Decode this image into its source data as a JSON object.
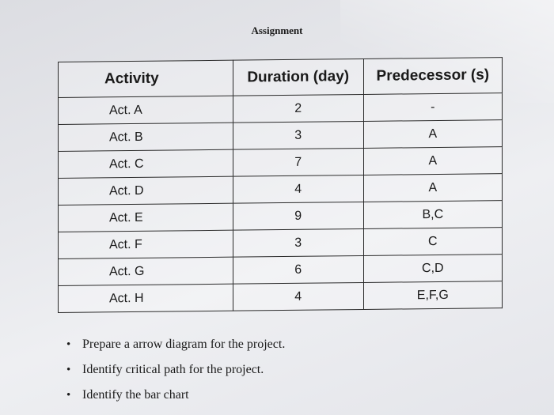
{
  "title": "Assignment",
  "table": {
    "headers": [
      "Activity",
      "Duration (day)",
      "Predecessor (s)"
    ],
    "rows": [
      [
        "Act. A",
        "2",
        "-"
      ],
      [
        "Act. B",
        "3",
        "A"
      ],
      [
        "Act. C",
        "7",
        "A"
      ],
      [
        "Act. D",
        "4",
        "A"
      ],
      [
        "Act. E",
        "9",
        "B,C"
      ],
      [
        "Act. F",
        "3",
        "C"
      ],
      [
        "Act. G",
        "6",
        "C,D"
      ],
      [
        "Act. H",
        "4",
        "E,F,G"
      ]
    ]
  },
  "tasks": [
    "Prepare a arrow diagram for the project.",
    "Identify critical path for the project.",
    "Identify the bar chart"
  ]
}
